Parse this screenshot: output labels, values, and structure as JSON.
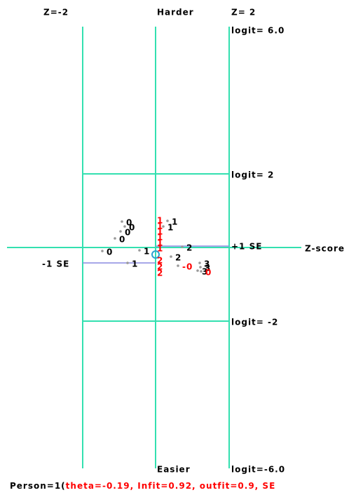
{
  "header": {
    "left": "Z=-2",
    "center": "Harder",
    "right": "Z= 2"
  },
  "footer": {
    "center": "Easier"
  },
  "logit_labels": [
    "logit= 6.0",
    "logit= 2",
    "logit= -2",
    "logit=-6.0"
  ],
  "se_labels": {
    "plus": "+1 SE",
    "minus": "-1 SE"
  },
  "axis_label": "Z-score",
  "points": [
    {
      "label": "0",
      "color": "#000000"
    },
    {
      "label": "0",
      "color": "#000000"
    },
    {
      "label": "0",
      "color": "#000000"
    },
    {
      "label": "0",
      "color": "#000000"
    },
    {
      "label": "0",
      "color": "#000000"
    },
    {
      "label": "1",
      "color": "#000000"
    },
    {
      "label": "1",
      "color": "#000000"
    },
    {
      "label": "1",
      "color": "#000000"
    },
    {
      "label": "1",
      "color": "#000000"
    },
    {
      "label": "2",
      "color": "#000000"
    },
    {
      "label": "2",
      "color": "#000000"
    },
    {
      "label": "3",
      "color": "#000000"
    },
    {
      "label": "3",
      "color": "#000000"
    },
    {
      "label": "3",
      "color": "#000000"
    },
    {
      "label": "-0",
      "color": "#ff0000"
    },
    {
      "label": "0",
      "color": "#ff0000"
    },
    {
      "label": "1",
      "color": "#ff0000"
    },
    {
      "label": "1",
      "color": "#ff0000"
    },
    {
      "label": "1",
      "color": "#ff0000"
    },
    {
      "label": "1",
      "color": "#ff0000"
    },
    {
      "label": "1",
      "color": "#ff0000"
    },
    {
      "label": "1",
      "color": "#ff0000"
    },
    {
      "label": "2",
      "color": "#ff0000"
    },
    {
      "label": "2",
      "color": "#ff0000"
    },
    {
      "label": "2",
      "color": "#ff0000"
    }
  ],
  "person": {
    "prefix": "Person=1(",
    "stats": "theta=-0.19, Infit=0.92, outfit=0.9, SE"
  }
}
